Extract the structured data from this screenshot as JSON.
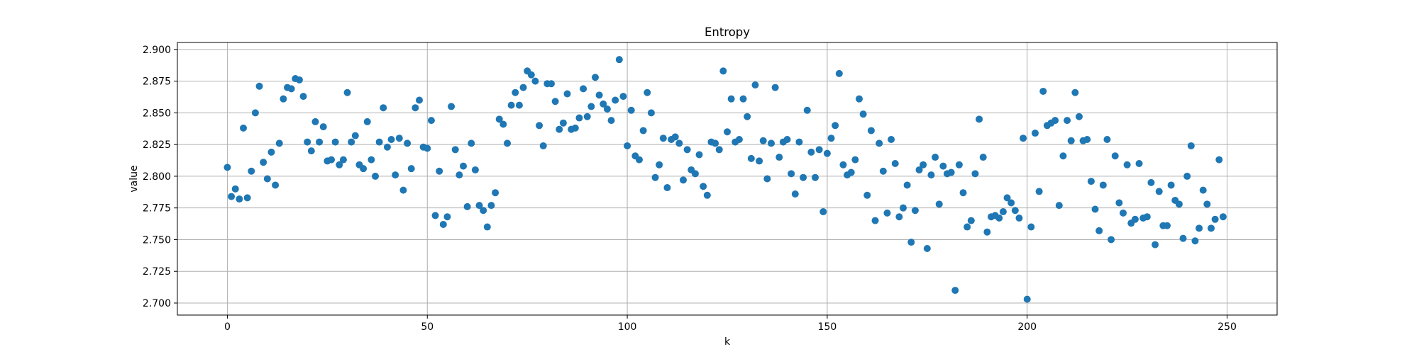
{
  "chart_data": {
    "type": "scatter",
    "title": "Entropy",
    "xlabel": "k",
    "ylabel": "value",
    "xlim": [
      -12.5,
      262.5
    ],
    "ylim": [
      2.6905,
      2.9055
    ],
    "xticks": [
      0,
      50,
      100,
      150,
      200,
      250
    ],
    "xtick_labels": [
      "0",
      "50",
      "100",
      "150",
      "200",
      "250"
    ],
    "yticks": [
      2.7,
      2.725,
      2.75,
      2.775,
      2.8,
      2.825,
      2.85,
      2.875,
      2.9
    ],
    "ytick_labels": [
      "2.700",
      "2.725",
      "2.750",
      "2.775",
      "2.800",
      "2.825",
      "2.850",
      "2.875",
      "2.900"
    ],
    "grid": true,
    "marker_color": "#1f77b4",
    "series": [
      {
        "x": [
          0,
          1,
          2,
          3,
          4,
          5,
          6,
          7,
          8,
          9,
          10,
          11,
          12,
          13,
          14,
          15,
          16,
          17,
          18,
          19,
          20,
          21,
          22,
          23,
          24,
          25,
          26,
          27,
          28,
          29,
          30,
          31,
          32,
          33,
          34,
          35,
          36,
          37,
          38,
          39,
          40,
          41,
          42,
          43,
          44,
          45,
          46,
          47,
          48,
          49,
          50,
          51,
          52,
          53,
          54,
          55,
          56,
          57,
          58,
          59,
          60,
          61,
          62,
          63,
          64,
          65,
          66,
          67,
          68,
          69,
          70,
          71,
          72,
          73,
          74,
          75,
          76,
          77,
          78,
          79,
          80,
          81,
          82,
          83,
          84,
          85,
          86,
          87,
          88,
          89,
          90,
          91,
          92,
          93,
          94,
          95,
          96,
          97,
          98,
          99,
          100,
          101,
          102,
          103,
          104,
          105,
          106,
          107,
          108,
          109,
          110,
          111,
          112,
          113,
          114,
          115,
          116,
          117,
          118,
          119,
          120,
          121,
          122,
          123,
          124,
          125,
          126,
          127,
          128,
          129,
          130,
          131,
          132,
          133,
          134,
          135,
          136,
          137,
          138,
          139,
          140,
          141,
          142,
          143,
          144,
          145,
          146,
          147,
          148,
          149,
          150,
          151,
          152,
          153,
          154,
          155,
          156,
          157,
          158,
          159,
          160,
          161,
          162,
          163,
          164,
          165,
          166,
          167,
          168,
          169,
          170,
          171,
          172,
          173,
          174,
          175,
          176,
          177,
          178,
          179,
          180,
          181,
          182,
          183,
          184,
          185,
          186,
          187,
          188,
          189,
          190,
          191,
          192,
          193,
          194,
          195,
          196,
          197,
          198,
          199,
          200,
          201,
          202,
          203,
          204,
          205,
          206,
          207,
          208,
          209,
          210,
          211,
          212,
          213,
          214,
          215,
          216,
          217,
          218,
          219,
          220,
          221,
          222,
          223,
          224,
          225,
          226,
          227,
          228,
          229,
          230,
          231,
          232,
          233,
          234,
          235,
          236,
          237,
          238,
          239,
          240,
          241,
          242,
          243,
          244,
          245,
          246,
          247,
          248,
          249
        ],
        "y": [
          2.807,
          2.784,
          2.79,
          2.782,
          2.838,
          2.783,
          2.804,
          2.85,
          2.871,
          2.811,
          2.798,
          2.819,
          2.793,
          2.826,
          2.861,
          2.87,
          2.869,
          2.877,
          2.876,
          2.863,
          2.827,
          2.82,
          2.843,
          2.827,
          2.839,
          2.812,
          2.813,
          2.827,
          2.809,
          2.813,
          2.866,
          2.827,
          2.832,
          2.809,
          2.806,
          2.843,
          2.813,
          2.8,
          2.827,
          2.854,
          2.823,
          2.829,
          2.801,
          2.83,
          2.789,
          2.826,
          2.806,
          2.854,
          2.86,
          2.823,
          2.822,
          2.844,
          2.769,
          2.804,
          2.762,
          2.768,
          2.855,
          2.821,
          2.801,
          2.808,
          2.776,
          2.826,
          2.805,
          2.777,
          2.773,
          2.76,
          2.777,
          2.787,
          2.845,
          2.841,
          2.826,
          2.856,
          2.866,
          2.856,
          2.87,
          2.883,
          2.88,
          2.875,
          2.84,
          2.824,
          2.873,
          2.873,
          2.859,
          2.837,
          2.842,
          2.865,
          2.837,
          2.838,
          2.846,
          2.869,
          2.847,
          2.855,
          2.878,
          2.864,
          2.857,
          2.853,
          2.844,
          2.86,
          2.892,
          2.863,
          2.824,
          2.852,
          2.816,
          2.813,
          2.836,
          2.866,
          2.85,
          2.799,
          2.809,
          2.83,
          2.791,
          2.829,
          2.831,
          2.826,
          2.797,
          2.821,
          2.805,
          2.802,
          2.817,
          2.792,
          2.785,
          2.827,
          2.826,
          2.821,
          2.883,
          2.835,
          2.861,
          2.827,
          2.829,
          2.861,
          2.847,
          2.814,
          2.872,
          2.812,
          2.828,
          2.798,
          2.826,
          2.87,
          2.815,
          2.827,
          2.829,
          2.802,
          2.786,
          2.827,
          2.799,
          2.852,
          2.819,
          2.799,
          2.821,
          2.772,
          2.818,
          2.83,
          2.84,
          2.881,
          2.809,
          2.801,
          2.803,
          2.813,
          2.861,
          2.849,
          2.785,
          2.836,
          2.765,
          2.826,
          2.804,
          2.771,
          2.829,
          2.81,
          2.768,
          2.775,
          2.793,
          2.748,
          2.773,
          2.805,
          2.809,
          2.743,
          2.801,
          2.815,
          2.778,
          2.808,
          2.802,
          2.803,
          2.71,
          2.809,
          2.787,
          2.76,
          2.765,
          2.802,
          2.845,
          2.815,
          2.756,
          2.768,
          2.769,
          2.767,
          2.772,
          2.783,
          2.779,
          2.773,
          2.767,
          2.83,
          2.703,
          2.76,
          2.834,
          2.788,
          2.867,
          2.84,
          2.842,
          2.844,
          2.777,
          2.816,
          2.844,
          2.828,
          2.866,
          2.847,
          2.828,
          2.829,
          2.796,
          2.774,
          2.757,
          2.793,
          2.829,
          2.75,
          2.816,
          2.779,
          2.771,
          2.809,
          2.763,
          2.766,
          2.81,
          2.767,
          2.768,
          2.795,
          2.746,
          2.788,
          2.761,
          2.761,
          2.793,
          2.781,
          2.778,
          2.751,
          2.8,
          2.824,
          2.749,
          2.759,
          2.789,
          2.778,
          2.759,
          2.766,
          2.813,
          2.768
        ]
      }
    ]
  }
}
